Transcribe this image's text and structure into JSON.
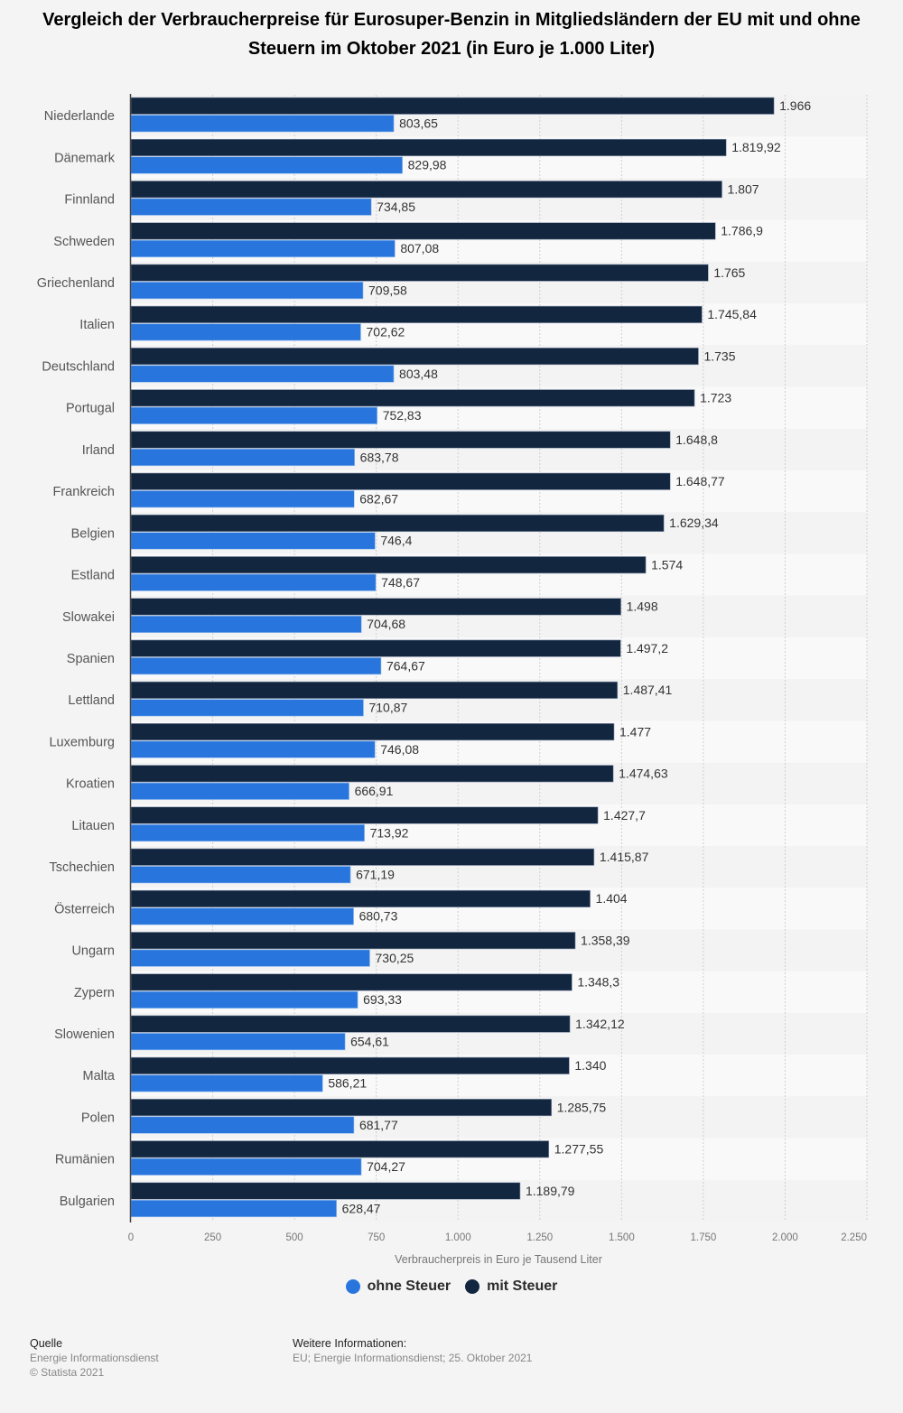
{
  "chart_data": {
    "type": "bar",
    "orientation": "horizontal",
    "title": "Vergleich der Verbraucherpreise für Eurosuper-Benzin in Mitgliedsländern der EU mit und ohne Steuern im Oktober 2021 (in Euro je 1.000 Liter)",
    "xlabel": "Verbraucherpreis in Euro je Tausend Liter",
    "ylabel": "",
    "xlim": [
      0,
      2250
    ],
    "xticks": [
      0,
      250,
      500,
      750,
      1000,
      1250,
      1500,
      1750,
      2000,
      2250
    ],
    "xtick_labels": [
      "0",
      "250",
      "500",
      "750",
      "1.000",
      "1.250",
      "1.500",
      "1.750",
      "2.000",
      "2.250"
    ],
    "grid": true,
    "legend_position": "bottom-center",
    "categories": [
      "Niederlande",
      "Dänemark",
      "Finnland",
      "Schweden",
      "Griechenland",
      "Italien",
      "Deutschland",
      "Portugal",
      "Irland",
      "Frankreich",
      "Belgien",
      "Estland",
      "Slowakei",
      "Spanien",
      "Lettland",
      "Luxemburg",
      "Kroatien",
      "Litauen",
      "Tschechien",
      "Österreich",
      "Ungarn",
      "Zypern",
      "Slowenien",
      "Malta",
      "Polen",
      "Rumänien",
      "Bulgarien"
    ],
    "series": [
      {
        "name": "mit Steuer",
        "color": "#12263f",
        "values": [
          1966,
          1819.92,
          1807,
          1786.9,
          1765,
          1745.84,
          1735,
          1723,
          1648.8,
          1648.77,
          1629.34,
          1574,
          1498,
          1497.2,
          1487.41,
          1477,
          1474.63,
          1427.7,
          1415.87,
          1404,
          1358.39,
          1348.3,
          1342.12,
          1340,
          1285.75,
          1277.55,
          1189.79
        ],
        "labels": [
          "1.966",
          "1.819,92",
          "1.807",
          "1.786,9",
          "1.765",
          "1.745,84",
          "1.735",
          "1.723",
          "1.648,8",
          "1.648,77",
          "1.629,34",
          "1.574",
          "1.498",
          "1.497,2",
          "1.487,41",
          "1.477",
          "1.474,63",
          "1.427,7",
          "1.415,87",
          "1.404",
          "1.358,39",
          "1.348,3",
          "1.342,12",
          "1.340",
          "1.285,75",
          "1.277,55",
          "1.189,79"
        ]
      },
      {
        "name": "ohne Steuer",
        "color": "#2876dd",
        "values": [
          803.65,
          829.98,
          734.85,
          807.08,
          709.58,
          702.62,
          803.48,
          752.83,
          683.78,
          682.67,
          746.4,
          748.67,
          704.68,
          764.67,
          710.87,
          746.08,
          666.91,
          713.92,
          671.19,
          680.73,
          730.25,
          693.33,
          654.61,
          586.21,
          681.77,
          704.27,
          628.47
        ],
        "labels": [
          "803,65",
          "829,98",
          "734,85",
          "807,08",
          "709,58",
          "702,62",
          "803,48",
          "752,83",
          "683,78",
          "682,67",
          "746,4",
          "748,67",
          "704,68",
          "764,67",
          "710,87",
          "746,08",
          "666,91",
          "713,92",
          "671,19",
          "680,73",
          "730,25",
          "693,33",
          "654,61",
          "586,21",
          "681,77",
          "704,27",
          "628,47"
        ]
      }
    ]
  },
  "legend": {
    "items": [
      {
        "label": "ohne Steuer",
        "color": "#2876dd"
      },
      {
        "label": "mit Steuer",
        "color": "#12263f"
      }
    ]
  },
  "footer": {
    "source_heading": "Quelle",
    "source_name": "Energie Informationsdienst",
    "copyright": "© Statista 2021",
    "info_heading": "Weitere Informationen:",
    "info_text": "EU; Energie Informationsdienst; 25. Oktober 2021"
  }
}
